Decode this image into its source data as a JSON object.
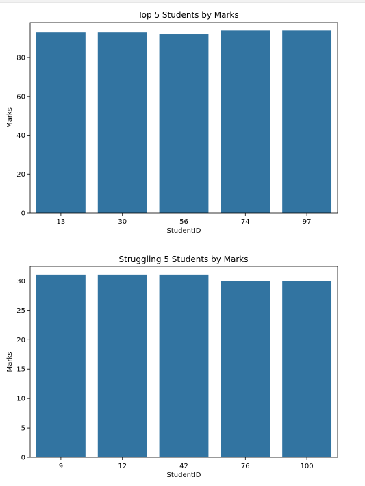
{
  "chart_data": [
    {
      "type": "bar",
      "title": "Top 5 Students by Marks",
      "xlabel": "StudentID",
      "ylabel": "Marks",
      "categories": [
        "13",
        "30",
        "56",
        "74",
        "97"
      ],
      "values": [
        93,
        93,
        92,
        94,
        94
      ],
      "ylim": [
        0,
        98
      ],
      "yticks": [
        0,
        20,
        40,
        60,
        80
      ],
      "bar_color": "#3274a1",
      "grid": false
    },
    {
      "type": "bar",
      "title": "Struggling 5 Students by Marks",
      "xlabel": "StudentID",
      "ylabel": "Marks",
      "categories": [
        "9",
        "12",
        "42",
        "76",
        "100"
      ],
      "values": [
        31,
        31,
        31,
        30,
        30
      ],
      "ylim": [
        0,
        32.5
      ],
      "yticks": [
        0,
        5,
        10,
        15,
        20,
        25,
        30
      ],
      "bar_color": "#3274a1",
      "grid": false
    }
  ]
}
